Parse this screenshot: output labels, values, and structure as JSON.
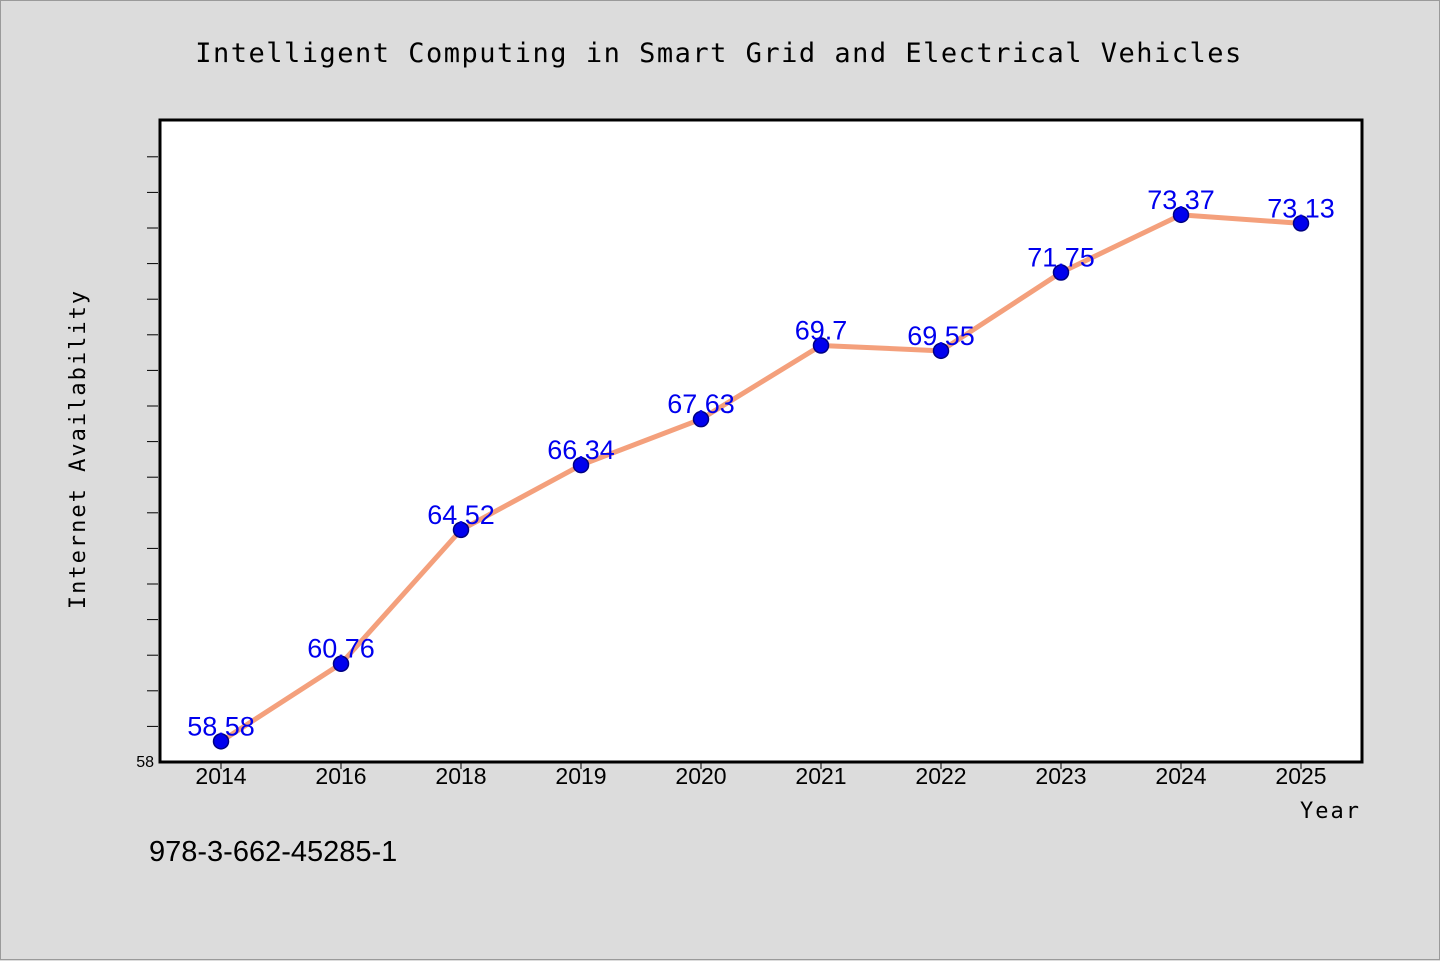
{
  "chart_data": {
    "type": "line",
    "title": "Intelligent Computing in Smart Grid and Electrical Vehicles",
    "xlabel": "Year",
    "ylabel": "Internet Availability",
    "categories": [
      "2014",
      "2016",
      "2018",
      "2019",
      "2020",
      "2021",
      "2022",
      "2023",
      "2024",
      "2025"
    ],
    "series": [
      {
        "values": [
          58.58,
          60.76,
          64.52,
          66.34,
          67.63,
          69.7,
          69.55,
          71.75,
          73.37,
          73.13
        ],
        "labels": [
          "58.58",
          "60.76",
          "64.52",
          "66.34",
          "67.63",
          "69.7",
          "69.55",
          "71.75",
          "73.37",
          "73.13"
        ]
      }
    ],
    "ylim": [
      58,
      76
    ],
    "y_min_label": "58",
    "grid": false,
    "legend": "none",
    "colors": {
      "line": "#f4a07c",
      "marker_fill": "#0000ee",
      "marker_edge": "#000080",
      "data_label": "#0000ee",
      "plot_background": "#ffffff",
      "page_background": "#dcdcdc"
    }
  },
  "footer": {
    "isbn": "978-3-662-45285-1"
  }
}
